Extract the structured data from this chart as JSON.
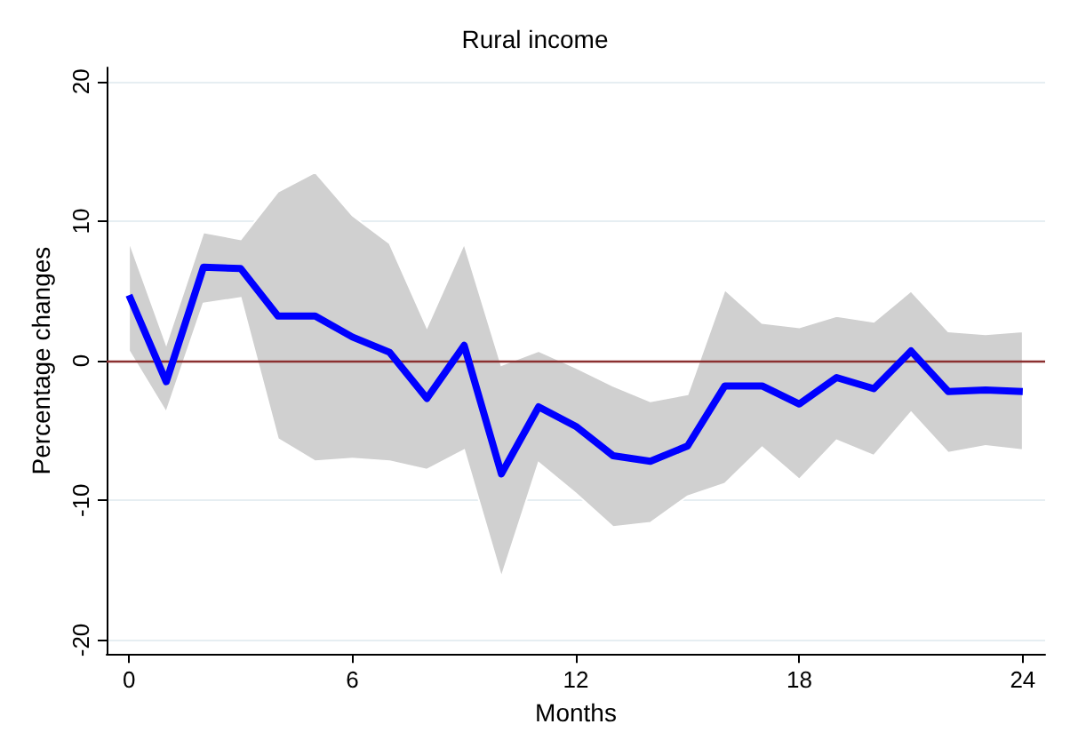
{
  "chart_data": {
    "type": "line",
    "title": "Rural income",
    "xlabel": "Months",
    "ylabel": "Percentage changes",
    "x": [
      0,
      1,
      2,
      3,
      4,
      5,
      6,
      7,
      8,
      9,
      10,
      11,
      12,
      13,
      14,
      15,
      16,
      17,
      18,
      19,
      20,
      21,
      22,
      23,
      24
    ],
    "series": [
      {
        "color": "#0000ff",
        "values": [
          4.7,
          -1.5,
          6.7,
          6.6,
          3.2,
          3.2,
          1.7,
          0.6,
          -2.7,
          1.1,
          -8.1,
          -3.3,
          -4.7,
          -6.8,
          -7.2,
          -6.1,
          -1.8,
          -1.8,
          -3.1,
          -1.2,
          -2.0,
          0.7,
          -2.2,
          -2.1,
          -2.2
        ],
        "lower": [
          0.7,
          -3.7,
          4.1,
          4.5,
          -5.6,
          -7.2,
          -7.0,
          -7.2,
          -7.8,
          -6.4,
          -15.5,
          -7.3,
          -9.5,
          -11.9,
          -11.6,
          -9.7,
          -8.8,
          -6.2,
          -8.5,
          -5.7,
          -6.8,
          -3.7,
          -6.6,
          -6.1,
          -6.4
        ],
        "upper": [
          8.6,
          1.2,
          9.2,
          8.7,
          12.1,
          13.5,
          10.4,
          8.4,
          2.4,
          8.4,
          -0.3,
          0.7,
          -0.5,
          -1.8,
          -2.9,
          -2.4,
          5.1,
          2.7,
          2.4,
          3.2,
          2.8,
          5.0,
          2.1,
          1.9,
          2.1
        ]
      }
    ],
    "xlim": [
      -0.6,
      24.6
    ],
    "ylim": [
      -21,
      21
    ],
    "xticks": [
      0,
      6,
      12,
      18,
      24
    ],
    "yticks": [
      -20,
      -10,
      0,
      10,
      20
    ],
    "ref_lines": [
      {
        "axis": "y",
        "value": 0,
        "color": "#8b3030"
      }
    ],
    "grid": "y",
    "marker": "none",
    "line_style": "solid"
  }
}
